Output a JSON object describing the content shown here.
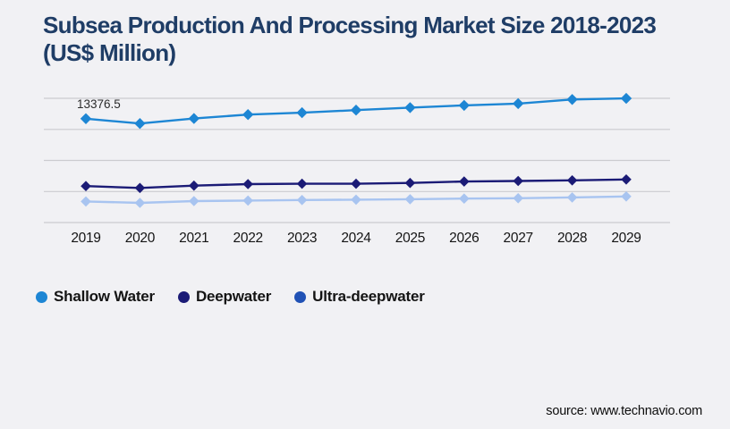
{
  "page": {
    "title": "Subsea Production And Processing Market Size 2018-2023 (US$ Million)",
    "source": "source: www.technavio.com"
  },
  "colors": {
    "background": "#f1f1f4",
    "title": "#1f3d66",
    "gridline": "#cbcbcf",
    "axis_label": "#141414",
    "annotation_text": "#2b2b2b",
    "legend_text": "#141414",
    "source_text": "#0d0d0d",
    "shallow_water": "#1d86d4",
    "deepwater": "#1b1b76",
    "ultra_deepwater_line": "#a8c4f0",
    "ultra_deepwater_legend": "#2051b5"
  },
  "legend": {
    "items": [
      {
        "label": "Shallow Water",
        "color": "#1d86d4"
      },
      {
        "label": "Deepwater",
        "color": "#1b1b76"
      },
      {
        "label": "Ultra-deepwater",
        "color": "#2051b5"
      }
    ]
  },
  "chart_data": {
    "type": "line",
    "title": "Subsea Production And Processing Market Size 2018-2023 (US$ Million)",
    "xlabel": "",
    "ylabel": "US$ Million",
    "x": [
      2019,
      2020,
      2021,
      2022,
      2023,
      2024,
      2025,
      2026,
      2027,
      2028,
      2029
    ],
    "series": [
      {
        "name": "Shallow Water",
        "color": "#1d86d4",
        "values": [
          13376.5,
          12750,
          13400,
          13900,
          14150,
          14480,
          14800,
          15090,
          15320,
          15850,
          15990
        ]
      },
      {
        "name": "Deepwater",
        "color": "#1b1b76",
        "values": [
          4700,
          4450,
          4750,
          4950,
          5000,
          5000,
          5100,
          5280,
          5350,
          5430,
          5550
        ]
      },
      {
        "name": "Ultra-deepwater",
        "color": "#a8c4f0",
        "values": [
          2720,
          2530,
          2760,
          2830,
          2900,
          2950,
          3000,
          3080,
          3130,
          3230,
          3360
        ]
      }
    ],
    "annotations": [
      {
        "series": "Shallow Water",
        "x": 2019,
        "text": "13376.5"
      }
    ],
    "ylim": [
      0,
      16000
    ],
    "gridline_step": 4000,
    "grid": true,
    "y_axis_labels_visible": false,
    "marker": "diamond",
    "legend_position": "bottom-left"
  }
}
